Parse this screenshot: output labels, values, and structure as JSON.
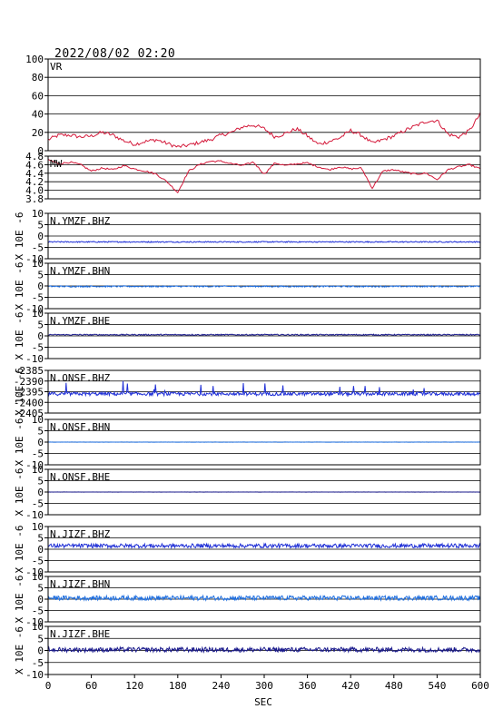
{
  "chart_data": {
    "type": "line",
    "title": "2022/08/02  02:20",
    "xlabel": "SEC",
    "xlim": [
      0,
      600
    ],
    "xticks": [
      "0",
      "60",
      "120",
      "180",
      "240",
      "300",
      "360",
      "420",
      "480",
      "540",
      "600"
    ],
    "grid": "horizontal lines at y ticks",
    "panels": [
      {
        "label": "VR",
        "ylabel": "",
        "color": "#d4193a",
        "ylim": [
          0,
          100
        ],
        "yticks": [
          "100",
          "80",
          "60",
          "40",
          "20",
          "0"
        ],
        "x": [
          0,
          15,
          30,
          45,
          60,
          75,
          90,
          105,
          120,
          135,
          150,
          165,
          180,
          195,
          210,
          225,
          240,
          255,
          270,
          285,
          300,
          315,
          330,
          345,
          360,
          375,
          390,
          405,
          420,
          435,
          450,
          465,
          480,
          495,
          510,
          525,
          540,
          555,
          570,
          585,
          600
        ],
        "values": [
          12,
          17,
          17,
          15,
          16,
          20,
          17,
          11,
          7,
          10,
          12,
          8,
          4,
          6,
          9,
          12,
          17,
          20,
          26,
          28,
          24,
          15,
          19,
          24,
          16,
          7,
          10,
          14,
          22,
          17,
          8,
          12,
          16,
          22,
          27,
          32,
          33,
          18,
          15,
          22,
          40
        ]
      },
      {
        "label": "MW",
        "ylabel": "",
        "color": "#d4193a",
        "ylim": [
          3.8,
          4.8
        ],
        "yticks": [
          "4.8",
          "4.6",
          "4.4",
          "4.2",
          "4.0",
          "3.8"
        ],
        "x": [
          0,
          15,
          30,
          45,
          60,
          75,
          90,
          105,
          120,
          135,
          150,
          165,
          180,
          195,
          210,
          225,
          240,
          255,
          270,
          285,
          300,
          315,
          330,
          345,
          360,
          375,
          390,
          405,
          420,
          435,
          450,
          465,
          480,
          495,
          510,
          525,
          540,
          555,
          570,
          585,
          600
        ],
        "values": [
          4.72,
          4.62,
          4.66,
          4.6,
          4.45,
          4.52,
          4.48,
          4.58,
          4.5,
          4.45,
          4.38,
          4.2,
          3.95,
          4.45,
          4.6,
          4.68,
          4.68,
          4.62,
          4.58,
          4.66,
          4.38,
          4.64,
          4.58,
          4.62,
          4.64,
          4.55,
          4.48,
          4.55,
          4.5,
          4.52,
          4.05,
          4.45,
          4.48,
          4.42,
          4.38,
          4.4,
          4.25,
          4.48,
          4.55,
          4.6,
          4.5
        ]
      },
      {
        "label": "N.YMZF.BHZ",
        "ylabel": "X 10E -6",
        "color": "#1f2fd6",
        "ylim": [
          -10,
          10
        ],
        "yticks": [
          "10",
          "5",
          "0",
          "-5",
          "-10"
        ],
        "baseline": -2.6,
        "noise": 0.25,
        "spikes": 0
      },
      {
        "label": "N.YMZF.BHN",
        "ylabel": "X 10E -6",
        "color": "#1f6fe0",
        "ylim": [
          -10,
          10
        ],
        "yticks": [
          "10",
          "5",
          "0",
          "-5",
          "-10"
        ],
        "baseline": -0.2,
        "noise": 0.3,
        "spikes": 0
      },
      {
        "label": "N.YMZF.BHE",
        "ylabel": "X 10E -6",
        "color": "#1a1a8c",
        "ylim": [
          -10,
          10
        ],
        "yticks": [
          "10",
          "5",
          "0",
          "-5",
          "-10"
        ],
        "baseline": 0.5,
        "noise": 0.25,
        "spikes": 0
      },
      {
        "label": "N.ONSF.BHZ",
        "ylabel": "X 10E -6",
        "color": "#1f2fd6",
        "ylim": [
          -2405,
          -2385
        ],
        "yticks": [
          "-2385",
          "-2390",
          "-2395",
          "-2400",
          "-2405"
        ],
        "baseline": -2396,
        "noise": 0.8,
        "spikes": 1
      },
      {
        "label": "N.ONSF.BHN",
        "ylabel": "X 10E -6",
        "color": "#1f6fe0",
        "ylim": [
          -10,
          10
        ],
        "yticks": [
          "10",
          "5",
          "0",
          "-5",
          "-10"
        ],
        "baseline": 0,
        "noise": 0.05,
        "spikes": 0
      },
      {
        "label": "N.ONSF.BHE",
        "ylabel": "X 10E -6",
        "color": "#1a1a8c",
        "ylim": [
          -10,
          10
        ],
        "yticks": [
          "10",
          "5",
          "0",
          "-5",
          "-10"
        ],
        "baseline": 0,
        "noise": 0.03,
        "spikes": 0
      },
      {
        "label": "N.JIZF.BHZ",
        "ylabel": "X 10E -6",
        "color": "#1f2fd6",
        "ylim": [
          -10,
          10
        ],
        "yticks": [
          "10",
          "5",
          "0",
          "-5",
          "-10"
        ],
        "baseline": 1.5,
        "noise": 0.9,
        "spikes": 0
      },
      {
        "label": "N.JIZF.BHN",
        "ylabel": "X 10E -6",
        "color": "#1f6fe0",
        "ylim": [
          -10,
          10
        ],
        "yticks": [
          "10",
          "5",
          "0",
          "-5",
          "-10"
        ],
        "baseline": 0.5,
        "noise": 1.0,
        "spikes": 0
      },
      {
        "label": "N.JIZF.BHE",
        "ylabel": "X 10E -6",
        "color": "#1a1a8c",
        "ylim": [
          -10,
          10
        ],
        "yticks": [
          "10",
          "5",
          "0",
          "-5",
          "-10"
        ],
        "baseline": 0.3,
        "noise": 1.0,
        "spikes": 0
      }
    ]
  }
}
